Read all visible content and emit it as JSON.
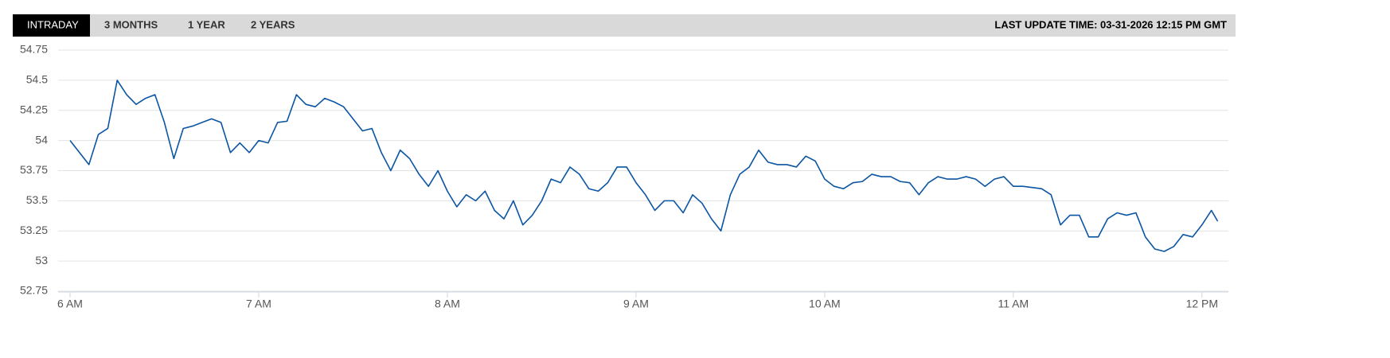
{
  "tabs": [
    "INTRADAY",
    "3 MONTHS",
    "1 YEAR",
    "2 YEARS"
  ],
  "last_update": "LAST UPDATE TIME: 03-31-2026 12:15 PM GMT",
  "chart_data": {
    "type": "line",
    "color": "#0b55a3",
    "grid": true,
    "x": [
      360,
      363,
      366,
      369,
      372,
      375,
      378,
      381,
      384,
      387,
      390,
      393,
      396,
      399,
      402,
      405,
      408,
      411,
      414,
      417,
      420,
      423,
      426,
      429,
      432,
      435,
      438,
      441,
      444,
      447,
      450,
      453,
      456,
      459,
      462,
      465,
      468,
      471,
      474,
      477,
      480,
      483,
      486,
      489,
      492,
      495,
      498,
      501,
      504,
      507,
      510,
      513,
      516,
      519,
      522,
      525,
      528,
      531,
      534,
      537,
      540,
      543,
      546,
      549,
      552,
      555,
      558,
      561,
      564,
      567,
      570,
      573,
      576,
      579,
      582,
      585,
      588,
      591,
      594,
      597,
      600,
      603,
      606,
      609,
      612,
      615,
      618,
      621,
      624,
      627,
      630,
      633,
      636,
      639,
      642,
      645,
      648,
      651,
      654,
      657,
      660,
      663,
      666,
      669,
      672,
      675,
      678,
      681,
      684,
      687,
      690,
      693,
      696,
      699,
      702,
      705,
      708,
      711,
      714,
      717,
      720,
      723,
      725
    ],
    "values": [
      54.0,
      53.9,
      53.8,
      54.05,
      54.1,
      54.5,
      54.38,
      54.3,
      54.35,
      54.38,
      54.15,
      53.85,
      54.1,
      54.12,
      54.15,
      54.18,
      54.15,
      53.9,
      53.98,
      53.9,
      54.0,
      53.98,
      54.15,
      54.16,
      54.38,
      54.3,
      54.28,
      54.35,
      54.32,
      54.28,
      54.18,
      54.08,
      54.1,
      53.9,
      53.75,
      53.92,
      53.85,
      53.72,
      53.62,
      53.75,
      53.58,
      53.45,
      53.55,
      53.5,
      53.58,
      53.42,
      53.35,
      53.5,
      53.3,
      53.38,
      53.5,
      53.68,
      53.65,
      53.78,
      53.72,
      53.6,
      53.58,
      53.65,
      53.78,
      53.78,
      53.65,
      53.55,
      53.42,
      53.5,
      53.5,
      53.4,
      53.55,
      53.48,
      53.35,
      53.25,
      53.55,
      53.72,
      53.78,
      53.92,
      53.82,
      53.8,
      53.8,
      53.78,
      53.87,
      53.83,
      53.68,
      53.62,
      53.6,
      53.65,
      53.66,
      53.72,
      53.7,
      53.7,
      53.66,
      53.65,
      53.55,
      53.65,
      53.7,
      53.68,
      53.68,
      53.7,
      53.68,
      53.62,
      53.68,
      53.7,
      53.62,
      53.62,
      53.61,
      53.6,
      53.55,
      53.3,
      53.38,
      53.38,
      53.2,
      53.2,
      53.35,
      53.4,
      53.38,
      53.4,
      53.2,
      53.1,
      53.08,
      53.12,
      53.22,
      53.2,
      53.3,
      53.42,
      53.33
    ],
    "xlim": [
      356.2,
      728.4
    ],
    "xticks": [
      {
        "value": 360,
        "label": "6 AM"
      },
      {
        "value": 420,
        "label": "7 AM"
      },
      {
        "value": 480,
        "label": "8 AM"
      },
      {
        "value": 540,
        "label": "9 AM"
      },
      {
        "value": 600,
        "label": "10 AM"
      },
      {
        "value": 660,
        "label": "11 AM"
      },
      {
        "value": 720,
        "label": "12 PM"
      }
    ],
    "ylim": [
      52.75,
      54.75
    ],
    "yticks": [
      52.75,
      53,
      53.25,
      53.5,
      53.75,
      54,
      54.25,
      54.5,
      54.75
    ]
  }
}
